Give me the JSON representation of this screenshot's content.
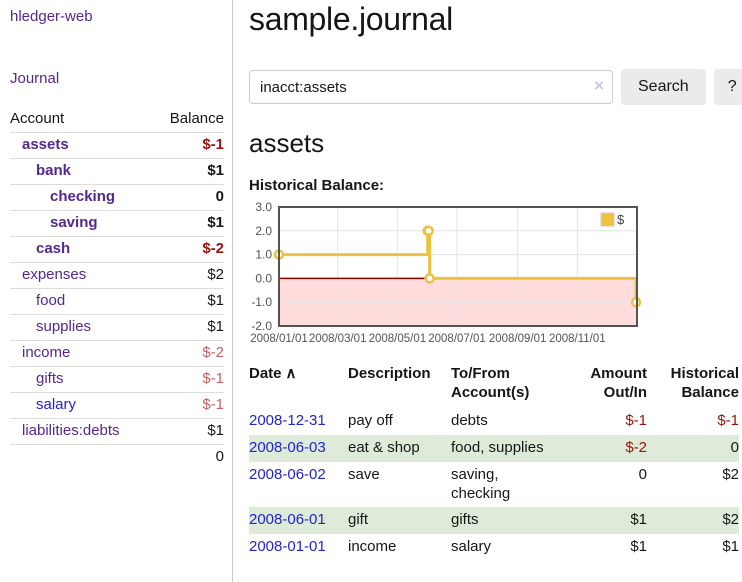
{
  "colors": {
    "purple": "#54288e",
    "blue": "#2424cc",
    "neg": "#97130b",
    "neg-light": "#c16464",
    "row-green": "#ddebd8",
    "gold": "#edc240",
    "zero-line": "#990000",
    "neg-fill": "#ffdddd",
    "chart-border": "#545454",
    "grid": "#e3e3e3"
  },
  "sidebar": {
    "app_title": "hledger-web",
    "journal_label": "Journal",
    "header": {
      "account": "Account",
      "balance": "Balance"
    },
    "accounts": [
      {
        "name": "assets",
        "indent": 1,
        "balance": "$-1",
        "bold": true,
        "negative": true,
        "unvisited": false
      },
      {
        "name": "bank",
        "indent": 2,
        "balance": "$1",
        "bold": true,
        "negative": false,
        "unvisited": false
      },
      {
        "name": "checking",
        "indent": 3,
        "balance": "0",
        "bold": true,
        "negative": false,
        "unvisited": false
      },
      {
        "name": "saving",
        "indent": 3,
        "balance": "$1",
        "bold": true,
        "negative": false,
        "unvisited": false
      },
      {
        "name": "cash",
        "indent": 2,
        "balance": "$-2",
        "bold": true,
        "negative": true,
        "unvisited": false
      },
      {
        "name": "expenses",
        "indent": 1,
        "balance": "$2",
        "bold": false,
        "negative": false,
        "unvisited": false
      },
      {
        "name": "food",
        "indent": 2,
        "balance": "$1",
        "bold": false,
        "negative": false,
        "unvisited": false
      },
      {
        "name": "supplies",
        "indent": 2,
        "balance": "$1",
        "bold": false,
        "negative": false,
        "unvisited": false
      },
      {
        "name": "income",
        "indent": 1,
        "balance": "$-2",
        "bold": false,
        "negative": true,
        "unvisited": false
      },
      {
        "name": "gifts",
        "indent": 2,
        "balance": "$-1",
        "bold": false,
        "negative": true,
        "unvisited": false
      },
      {
        "name": "salary",
        "indent": 2,
        "balance": "$-1",
        "bold": false,
        "negative": true,
        "unvisited": true
      },
      {
        "name": "liabilities:debts",
        "indent": 1,
        "balance": "$1",
        "bold": false,
        "negative": false,
        "unvisited": false
      }
    ],
    "total": "0"
  },
  "main": {
    "title": "sample.journal",
    "account_heading": "assets",
    "chart_label": "Historical Balance:"
  },
  "search": {
    "query": "inacct:assets",
    "clear_icon": "×",
    "search_label": "Search",
    "help_label": "?"
  },
  "chart_data": {
    "type": "line",
    "step": true,
    "title": "Historical Balance",
    "series": [
      {
        "name": "$",
        "color": "#edc240",
        "points": [
          [
            "2008-01-01",
            1
          ],
          [
            "2008-06-01",
            2
          ],
          [
            "2008-06-02",
            2
          ],
          [
            "2008-06-03",
            0
          ],
          [
            "2008-12-31",
            -1
          ]
        ]
      }
    ],
    "x_range": [
      "2008-01-01",
      "2009-01-01"
    ],
    "x_ticks": [
      {
        "date": "2008-01-01",
        "label": "2008/01/01"
      },
      {
        "date": "2008-03-01",
        "label": "2008/03/01"
      },
      {
        "date": "2008-05-01",
        "label": "2008/05/01"
      },
      {
        "date": "2008-07-01",
        "label": "2008/07/01"
      },
      {
        "date": "2008-09-01",
        "label": "2008/09/01"
      },
      {
        "date": "2008-11-01",
        "label": "2008/11/01"
      }
    ],
    "y_ticks": [
      3.0,
      2.0,
      1.0,
      0.0,
      -1.0,
      -2.0
    ],
    "ylim": [
      -2,
      3
    ],
    "grid": true,
    "legend": {
      "position": "top-right",
      "label": "$"
    },
    "negative_region": {
      "from": -2,
      "to": 0
    }
  },
  "register": {
    "headers": {
      "date": "Date",
      "sort_icon": "∧",
      "description": "Description",
      "accounts": "To/From Account(s)",
      "amount": "Amount Out/In",
      "balance": "Historical Balance"
    },
    "rows": [
      {
        "date": "2008-12-31",
        "description": "pay off",
        "accounts": "debts",
        "amount": "$-1",
        "amount_negative": true,
        "balance": "$-1",
        "balance_negative": true
      },
      {
        "date": "2008-06-03",
        "description": "eat & shop",
        "accounts": "food, supplies",
        "amount": "$-2",
        "amount_negative": true,
        "balance": "0",
        "balance_negative": false
      },
      {
        "date": "2008-06-02",
        "description": "save",
        "accounts": "saving, checking",
        "amount": "0",
        "amount_negative": false,
        "balance": "$2",
        "balance_negative": false
      },
      {
        "date": "2008-06-01",
        "description": "gift",
        "accounts": "gifts",
        "amount": "$1",
        "amount_negative": false,
        "balance": "$2",
        "balance_negative": false
      },
      {
        "date": "2008-01-01",
        "description": "income",
        "accounts": "salary",
        "amount": "$1",
        "amount_negative": false,
        "balance": "$1",
        "balance_negative": false
      }
    ]
  }
}
